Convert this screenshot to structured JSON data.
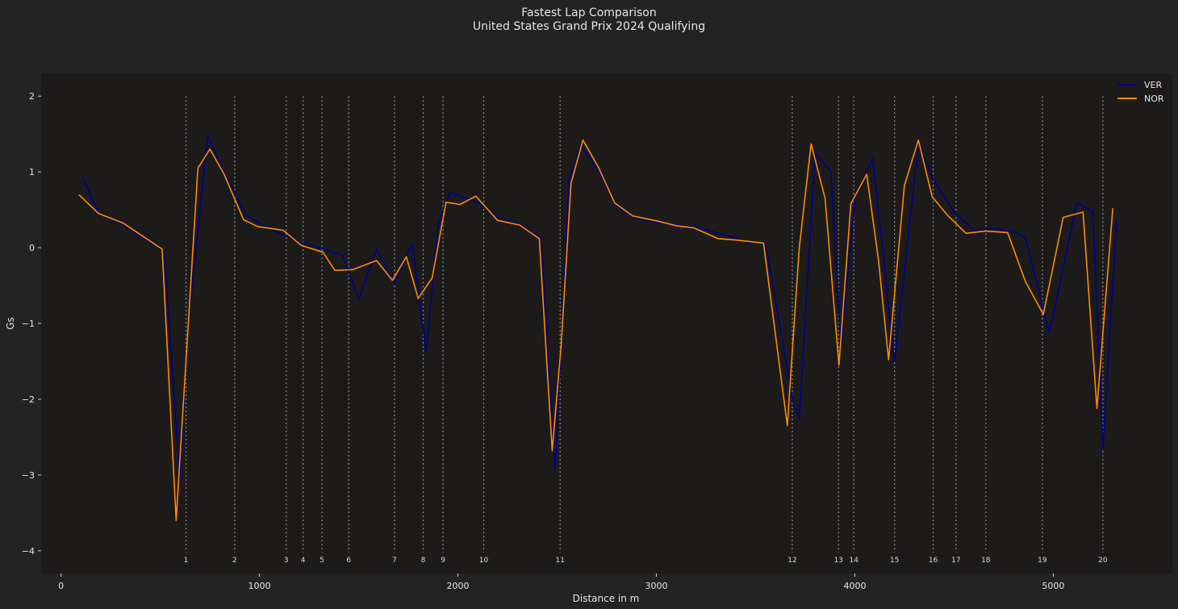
{
  "chart_data": {
    "type": "line",
    "title": "Fastest Lap Comparison",
    "subtitle": "United States Grand Prix 2024 Qualifying",
    "xlabel": "Distance in m",
    "ylabel": "Gs",
    "xlim": [
      -100,
      5600
    ],
    "ylim": [
      -4.3,
      2.3
    ],
    "xticks": [
      0,
      1000,
      2000,
      3000,
      4000,
      5000
    ],
    "yticks": [
      2,
      1,
      0,
      -1,
      -2,
      -3,
      -4
    ],
    "xtick_labels": [
      "0",
      "1000",
      "2000",
      "3000",
      "4000",
      "5000"
    ],
    "ytick_labels": [
      "2",
      "1",
      "0",
      "−1",
      "−2",
      "−3",
      "−4"
    ],
    "grid": false,
    "legend_position": "top-right",
    "corners": [
      {
        "number": "1",
        "distance": 630
      },
      {
        "number": "2",
        "distance": 875
      },
      {
        "number": "3",
        "distance": 1135
      },
      {
        "number": "4",
        "distance": 1220
      },
      {
        "number": "5",
        "distance": 1315
      },
      {
        "number": "6",
        "distance": 1450
      },
      {
        "number": "7",
        "distance": 1680
      },
      {
        "number": "8",
        "distance": 1825
      },
      {
        "number": "9",
        "distance": 1925
      },
      {
        "number": "10",
        "distance": 2130
      },
      {
        "number": "11",
        "distance": 2515
      },
      {
        "number": "12",
        "distance": 3685
      },
      {
        "number": "13",
        "distance": 3918
      },
      {
        "number": "14",
        "distance": 3995
      },
      {
        "number": "15",
        "distance": 4200
      },
      {
        "number": "16",
        "distance": 4395
      },
      {
        "number": "17",
        "distance": 4510
      },
      {
        "number": "18",
        "distance": 4660
      },
      {
        "number": "19",
        "distance": 4945
      },
      {
        "number": "20",
        "distance": 5250
      }
    ],
    "series": [
      {
        "name": "VER",
        "color": "#00008b",
        "x": [
          110,
          190,
          300,
          520,
          600,
          640,
          740,
          830,
          930,
          1050,
          1200,
          1330,
          1420,
          1500,
          1590,
          1680,
          1770,
          1840,
          1900,
          1960,
          2050,
          2130,
          2200,
          2320,
          2420,
          2490,
          2560,
          2620,
          2700,
          2800,
          2900,
          3000,
          3200,
          3330,
          3450,
          3550,
          3690,
          3720,
          3800,
          3880,
          3930,
          4000,
          4090,
          4200,
          4320,
          4400,
          4500,
          4600,
          4700,
          4800,
          4860,
          4980,
          5120,
          5200,
          5250,
          5320
        ],
        "y": [
          0.92,
          0.45,
          0.32,
          -0.05,
          -3.08,
          -1.0,
          1.48,
          0.95,
          0.43,
          0.25,
          0.08,
          -0.02,
          -0.1,
          -0.68,
          -0.02,
          -0.47,
          0.05,
          -1.38,
          0.3,
          0.73,
          0.65,
          0.55,
          0.4,
          0.3,
          0.12,
          -2.95,
          0.9,
          1.35,
          1.05,
          0.55,
          0.38,
          0.33,
          0.27,
          0.18,
          0.08,
          0.05,
          -2.05,
          -2.25,
          1.25,
          1.0,
          -1.3,
          0.65,
          1.18,
          -1.5,
          1.35,
          0.88,
          0.47,
          0.23,
          0.25,
          0.22,
          0.13,
          -1.13,
          0.6,
          0.47,
          -2.65,
          0.37
        ]
      },
      {
        "name": "NOR",
        "color": "#ff8c00",
        "x": [
          90,
          190,
          310,
          510,
          580,
          690,
          750,
          820,
          920,
          990,
          1120,
          1210,
          1320,
          1380,
          1470,
          1590,
          1670,
          1740,
          1800,
          1870,
          1940,
          2010,
          2090,
          2200,
          2310,
          2410,
          2475,
          2520,
          2570,
          2630,
          2710,
          2790,
          2880,
          2990,
          3100,
          3190,
          3310,
          3410,
          3540,
          3660,
          3720,
          3780,
          3850,
          3920,
          3980,
          4060,
          4120,
          4170,
          4250,
          4320,
          4390,
          4470,
          4560,
          4660,
          4770,
          4860,
          4950,
          5050,
          5150,
          5220,
          5300
        ],
        "y": [
          0.7,
          0.45,
          0.33,
          -0.02,
          -3.6,
          1.05,
          1.3,
          0.98,
          0.37,
          0.28,
          0.23,
          0.03,
          -0.06,
          -0.3,
          -0.29,
          -0.17,
          -0.43,
          -0.12,
          -0.67,
          -0.4,
          0.6,
          0.57,
          0.68,
          0.36,
          0.3,
          0.12,
          -2.68,
          -1.3,
          0.85,
          1.42,
          1.05,
          0.59,
          0.42,
          0.36,
          0.29,
          0.26,
          0.12,
          0.1,
          0.06,
          -2.35,
          0.0,
          1.37,
          0.65,
          -1.55,
          0.58,
          0.97,
          -0.18,
          -1.48,
          0.82,
          1.42,
          0.67,
          0.42,
          0.19,
          0.22,
          0.2,
          -0.45,
          -0.88,
          0.4,
          0.47,
          -2.12,
          0.52
        ]
      }
    ]
  }
}
